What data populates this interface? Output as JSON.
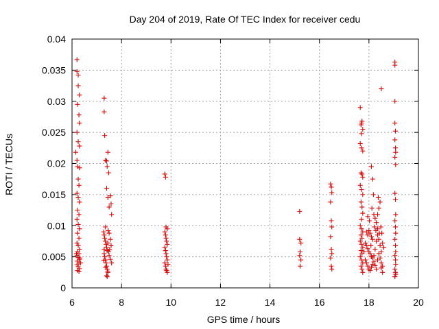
{
  "chart_data": {
    "type": "scatter",
    "title": "Day 204 of 2019, Rate Of TEC Index for receiver cedu",
    "xlabel": "GPS time / hours",
    "ylabel": "ROTI / TECUs",
    "xlim": [
      6,
      20
    ],
    "ylim": [
      0,
      0.04
    ],
    "x_ticks": [
      6,
      8,
      10,
      12,
      14,
      16,
      18,
      20
    ],
    "x_tick_labels": [
      "6",
      "8",
      "10",
      "12",
      "14",
      "16",
      "18",
      "20"
    ],
    "y_ticks": [
      0,
      0.005,
      0.01,
      0.015,
      0.02,
      0.025,
      0.03,
      0.035,
      0.04
    ],
    "y_tick_labels": [
      "0",
      "0.005",
      "0.01",
      "0.015",
      "0.02",
      "0.025",
      "0.03",
      "0.035",
      "0.04"
    ],
    "grid": true,
    "marker": "plus",
    "series": [
      {
        "name": "ROTI",
        "color": "#e00000",
        "points": [
          [
            6.2,
            0.0367
          ],
          [
            6.2,
            0.0348
          ],
          [
            6.25,
            0.0342
          ],
          [
            6.25,
            0.0325
          ],
          [
            6.3,
            0.031
          ],
          [
            6.22,
            0.0295
          ],
          [
            6.28,
            0.0278
          ],
          [
            6.3,
            0.0265
          ],
          [
            6.2,
            0.025
          ],
          [
            6.25,
            0.0235
          ],
          [
            6.3,
            0.0228
          ],
          [
            6.15,
            0.0218
          ],
          [
            6.2,
            0.0205
          ],
          [
            6.22,
            0.0195
          ],
          [
            6.3,
            0.0193
          ],
          [
            6.25,
            0.0175
          ],
          [
            6.28,
            0.0165
          ],
          [
            6.2,
            0.0152
          ],
          [
            6.25,
            0.0145
          ],
          [
            6.3,
            0.0138
          ],
          [
            6.22,
            0.0125
          ],
          [
            6.28,
            0.0118
          ],
          [
            6.2,
            0.011
          ],
          [
            6.25,
            0.0102
          ],
          [
            6.3,
            0.0095
          ],
          [
            6.22,
            0.0088
          ],
          [
            6.28,
            0.008
          ],
          [
            6.2,
            0.0072
          ],
          [
            6.25,
            0.0068
          ],
          [
            6.3,
            0.0062
          ],
          [
            6.22,
            0.0058
          ],
          [
            6.28,
            0.0055
          ],
          [
            6.2,
            0.0052
          ],
          [
            6.25,
            0.0049
          ],
          [
            6.3,
            0.0046
          ],
          [
            6.22,
            0.0043
          ],
          [
            6.28,
            0.004
          ],
          [
            6.2,
            0.0037
          ],
          [
            6.25,
            0.0034
          ],
          [
            6.3,
            0.0031
          ],
          [
            6.22,
            0.0028
          ],
          [
            6.28,
            0.0026
          ],
          [
            6.32,
            0.0048
          ],
          [
            6.18,
            0.0055
          ],
          [
            6.35,
            0.004
          ],
          [
            7.3,
            0.0305
          ],
          [
            7.3,
            0.0283
          ],
          [
            7.32,
            0.0245
          ],
          [
            7.35,
            0.0205
          ],
          [
            7.4,
            0.0204
          ],
          [
            7.45,
            0.0218
          ],
          [
            7.42,
            0.0195
          ],
          [
            7.48,
            0.0185
          ],
          [
            7.4,
            0.016
          ],
          [
            7.45,
            0.0145
          ],
          [
            7.5,
            0.013
          ],
          [
            7.55,
            0.0148
          ],
          [
            7.58,
            0.0135
          ],
          [
            7.6,
            0.0118
          ],
          [
            7.35,
            0.0098
          ],
          [
            7.28,
            0.009
          ],
          [
            7.3,
            0.0085
          ],
          [
            7.32,
            0.008
          ],
          [
            7.35,
            0.0075
          ],
          [
            7.38,
            0.007
          ],
          [
            7.4,
            0.0065
          ],
          [
            7.42,
            0.006
          ],
          [
            7.3,
            0.0055
          ],
          [
            7.32,
            0.005
          ],
          [
            7.35,
            0.0045
          ],
          [
            7.38,
            0.004
          ],
          [
            7.4,
            0.0035
          ],
          [
            7.42,
            0.003
          ],
          [
            7.45,
            0.0025
          ],
          [
            7.4,
            0.002
          ],
          [
            7.42,
            0.0018
          ],
          [
            7.3,
            0.0062
          ],
          [
            7.48,
            0.0058
          ],
          [
            7.5,
            0.0052
          ],
          [
            7.55,
            0.0046
          ],
          [
            7.6,
            0.004
          ],
          [
            7.5,
            0.0088
          ],
          [
            7.55,
            0.0078
          ],
          [
            7.58,
            0.0068
          ],
          [
            7.45,
            0.0072
          ],
          [
            7.36,
            0.0033
          ],
          [
            7.44,
            0.0027
          ],
          [
            7.52,
            0.0062
          ],
          [
            7.28,
            0.0044
          ],
          [
            7.46,
            0.0092
          ],
          [
            9.75,
            0.0183
          ],
          [
            9.78,
            0.0178
          ],
          [
            9.8,
            0.0098
          ],
          [
            9.85,
            0.0095
          ],
          [
            9.75,
            0.009
          ],
          [
            9.78,
            0.0085
          ],
          [
            9.8,
            0.008
          ],
          [
            9.82,
            0.0075
          ],
          [
            9.85,
            0.007
          ],
          [
            9.75,
            0.0065
          ],
          [
            9.78,
            0.006
          ],
          [
            9.8,
            0.0055
          ],
          [
            9.82,
            0.005
          ],
          [
            9.85,
            0.0045
          ],
          [
            9.75,
            0.004
          ],
          [
            9.78,
            0.0035
          ],
          [
            9.8,
            0.003
          ],
          [
            9.82,
            0.0028
          ],
          [
            9.85,
            0.0025
          ],
          [
            9.88,
            0.0038
          ],
          [
            15.2,
            0.0123
          ],
          [
            15.2,
            0.0078
          ],
          [
            15.25,
            0.0072
          ],
          [
            15.22,
            0.0058
          ],
          [
            15.2,
            0.0052
          ],
          [
            15.25,
            0.0045
          ],
          [
            15.22,
            0.0035
          ],
          [
            16.45,
            0.0167
          ],
          [
            16.48,
            0.0162
          ],
          [
            16.5,
            0.0153
          ],
          [
            16.45,
            0.0138
          ],
          [
            16.48,
            0.0108
          ],
          [
            16.5,
            0.0098
          ],
          [
            16.45,
            0.0082
          ],
          [
            16.48,
            0.0062
          ],
          [
            16.5,
            0.0055
          ],
          [
            16.45,
            0.0048
          ],
          [
            16.48,
            0.0035
          ],
          [
            16.5,
            0.003
          ],
          [
            17.65,
            0.029
          ],
          [
            17.7,
            0.0265
          ],
          [
            17.72,
            0.0268
          ],
          [
            17.68,
            0.0262
          ],
          [
            17.75,
            0.0255
          ],
          [
            17.7,
            0.0248
          ],
          [
            17.65,
            0.0232
          ],
          [
            17.7,
            0.0225
          ],
          [
            17.75,
            0.022
          ],
          [
            17.68,
            0.0185
          ],
          [
            17.72,
            0.0183
          ],
          [
            17.75,
            0.0178
          ],
          [
            17.65,
            0.0165
          ],
          [
            17.7,
            0.0158
          ],
          [
            17.75,
            0.015
          ],
          [
            17.68,
            0.0138
          ],
          [
            17.72,
            0.013
          ],
          [
            17.75,
            0.012
          ],
          [
            17.7,
            0.011
          ],
          [
            17.65,
            0.01
          ],
          [
            17.7,
            0.0095
          ],
          [
            17.75,
            0.009
          ],
          [
            17.68,
            0.0085
          ],
          [
            17.72,
            0.008
          ],
          [
            17.65,
            0.0075
          ],
          [
            17.7,
            0.007
          ],
          [
            17.75,
            0.0065
          ],
          [
            17.68,
            0.006
          ],
          [
            17.72,
            0.0055
          ],
          [
            17.65,
            0.005
          ],
          [
            17.7,
            0.0045
          ],
          [
            17.75,
            0.004
          ],
          [
            17.68,
            0.0035
          ],
          [
            17.72,
            0.003
          ],
          [
            17.75,
            0.0025
          ],
          [
            17.9,
            0.009
          ],
          [
            17.95,
            0.0085
          ],
          [
            18.0,
            0.0092
          ],
          [
            18.05,
            0.0088
          ],
          [
            18.1,
            0.0082
          ],
          [
            18.15,
            0.0078
          ],
          [
            17.85,
            0.0072
          ],
          [
            17.9,
            0.0068
          ],
          [
            17.95,
            0.0063
          ],
          [
            18.0,
            0.0058
          ],
          [
            18.05,
            0.0055
          ],
          [
            18.1,
            0.005
          ],
          [
            18.15,
            0.0048
          ],
          [
            18.2,
            0.0052
          ],
          [
            18.25,
            0.0062
          ],
          [
            18.3,
            0.0075
          ],
          [
            18.35,
            0.0085
          ],
          [
            18.4,
            0.0078
          ],
          [
            18.45,
            0.0068
          ],
          [
            18.5,
            0.0058
          ],
          [
            17.85,
            0.0045
          ],
          [
            17.9,
            0.004
          ],
          [
            17.95,
            0.0035
          ],
          [
            18.0,
            0.003
          ],
          [
            18.05,
            0.0028
          ],
          [
            18.1,
            0.0033
          ],
          [
            18.15,
            0.0038
          ],
          [
            18.2,
            0.0042
          ],
          [
            18.25,
            0.0036
          ],
          [
            18.3,
            0.003
          ],
          [
            18.35,
            0.0045
          ],
          [
            18.4,
            0.0055
          ],
          [
            18.45,
            0.0048
          ],
          [
            18.5,
            0.004
          ],
          [
            18.55,
            0.0035
          ],
          [
            18.1,
            0.0195
          ],
          [
            18.15,
            0.0175
          ],
          [
            18.18,
            0.015
          ],
          [
            18.12,
            0.0128
          ],
          [
            18.2,
            0.0118
          ],
          [
            18.25,
            0.0112
          ],
          [
            18.3,
            0.0105
          ],
          [
            18.35,
            0.0118
          ],
          [
            18.4,
            0.0128
          ],
          [
            18.45,
            0.0138
          ],
          [
            18.38,
            0.0145
          ],
          [
            18.35,
            0.0095
          ],
          [
            18.42,
            0.0088
          ],
          [
            18.22,
            0.0098
          ],
          [
            18.28,
            0.0092
          ],
          [
            18.48,
            0.0098
          ],
          [
            18.52,
            0.0088
          ],
          [
            18.55,
            0.0072
          ],
          [
            18.6,
            0.0065
          ],
          [
            18.5,
            0.0032
          ],
          [
            18.55,
            0.0025
          ],
          [
            17.95,
            0.0115
          ],
          [
            18.02,
            0.0108
          ],
          [
            18.08,
            0.0068
          ],
          [
            17.8,
            0.0058
          ],
          [
            18.5,
            0.032
          ],
          [
            19.05,
            0.0363
          ],
          [
            19.05,
            0.0358
          ],
          [
            19.05,
            0.03
          ],
          [
            19.05,
            0.0265
          ],
          [
            19.07,
            0.0252
          ],
          [
            19.05,
            0.0238
          ],
          [
            19.07,
            0.0225
          ],
          [
            19.08,
            0.0218
          ],
          [
            19.05,
            0.021
          ],
          [
            19.08,
            0.0198
          ],
          [
            19.05,
            0.0152
          ],
          [
            19.07,
            0.0142
          ],
          [
            19.08,
            0.0118
          ],
          [
            19.05,
            0.0108
          ],
          [
            19.07,
            0.0098
          ],
          [
            19.08,
            0.0088
          ],
          [
            19.05,
            0.0078
          ],
          [
            19.07,
            0.0068
          ],
          [
            19.08,
            0.0058
          ],
          [
            19.05,
            0.0052
          ],
          [
            19.07,
            0.0045
          ],
          [
            19.08,
            0.0038
          ],
          [
            19.05,
            0.003
          ],
          [
            19.07,
            0.0025
          ],
          [
            19.08,
            0.0022
          ],
          [
            19.05,
            0.0018
          ]
        ]
      }
    ]
  }
}
